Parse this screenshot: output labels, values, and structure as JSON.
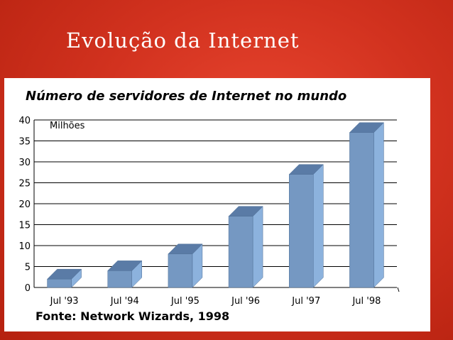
{
  "slide": {
    "title": "Evolução da Internet"
  },
  "chart_data": {
    "type": "bar",
    "title": "Número de servidores de Internet no mundo",
    "unit_label": "Milhões",
    "source": "Fonte:  Network Wizards, 1998",
    "categories": [
      "Jul '93",
      "Jul '94",
      "Jul '95",
      "Jul '96",
      "Jul '97",
      "Jul '98"
    ],
    "values": [
      2,
      4,
      8,
      17,
      27,
      37
    ],
    "ylim": [
      0,
      40
    ],
    "yticks": [
      0,
      5,
      10,
      15,
      20,
      25,
      30,
      35,
      40
    ],
    "grid": true,
    "legend": "none",
    "colors": {
      "front": "#7598c2",
      "side": "#8cb2dd",
      "top": "#5a7ba6"
    }
  }
}
